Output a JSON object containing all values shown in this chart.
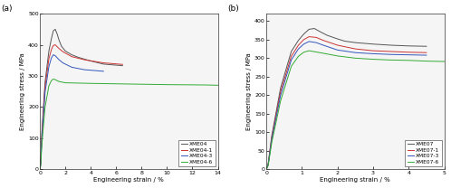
{
  "panel_a": {
    "label": "(a)",
    "xlabel": "Engineering strain / %",
    "ylabel": "Engineering stress / MPa",
    "xlim": [
      0,
      14
    ],
    "ylim": [
      0,
      500
    ],
    "xticks": [
      0,
      2,
      4,
      6,
      8,
      10,
      12,
      14
    ],
    "yticks": [
      0,
      100,
      200,
      300,
      400,
      500
    ],
    "series": [
      {
        "name": "XME04",
        "color": "#555555",
        "x": [
          0,
          0.05,
          0.15,
          0.4,
          0.7,
          0.9,
          1.05,
          1.2,
          1.35,
          1.5,
          1.7,
          2.0,
          2.5,
          3.0,
          4.0,
          5.0,
          6.5
        ],
        "y": [
          0,
          20,
          120,
          280,
          380,
          420,
          445,
          450,
          435,
          415,
          395,
          380,
          368,
          360,
          348,
          338,
          333
        ]
      },
      {
        "name": "XME04-1",
        "color": "#cc3333",
        "x": [
          0,
          0.05,
          0.15,
          0.4,
          0.7,
          0.9,
          1.05,
          1.2,
          1.5,
          1.8,
          2.5,
          3.5,
          5.0,
          6.5
        ],
        "y": [
          0,
          18,
          110,
          265,
          355,
          385,
          398,
          400,
          388,
          378,
          362,
          352,
          342,
          337
        ]
      },
      {
        "name": "XME04-3",
        "color": "#3355bb",
        "x": [
          0,
          0.05,
          0.15,
          0.4,
          0.7,
          0.9,
          1.05,
          1.2,
          1.5,
          1.8,
          2.5,
          3.5,
          5.0
        ],
        "y": [
          0,
          15,
          100,
          248,
          330,
          358,
          368,
          365,
          352,
          342,
          328,
          320,
          315
        ]
      },
      {
        "name": "XME04-6",
        "color": "#33aa33",
        "x": [
          0,
          0.05,
          0.15,
          0.4,
          0.7,
          0.9,
          1.05,
          1.2,
          1.5,
          2.0,
          4.0,
          7.0,
          10.0,
          13.0,
          14.0
        ],
        "y": [
          0,
          10,
          80,
          200,
          268,
          285,
          290,
          288,
          282,
          278,
          276,
          274,
          272,
          271,
          270
        ]
      }
    ]
  },
  "panel_b": {
    "label": "(b)",
    "xlabel": "Engineering strain / %",
    "ylabel": "Engineering stress / MPa",
    "xlim": [
      0,
      5
    ],
    "ylim": [
      0,
      420
    ],
    "xticks": [
      0,
      1,
      2,
      3,
      4,
      5
    ],
    "yticks": [
      0,
      50,
      100,
      150,
      200,
      250,
      300,
      350,
      400
    ],
    "series": [
      {
        "name": "XME07",
        "color": "#555555",
        "x": [
          0,
          0.05,
          0.15,
          0.4,
          0.7,
          0.9,
          1.05,
          1.2,
          1.35,
          1.5,
          1.7,
          2.0,
          2.2,
          2.5,
          3.0,
          3.5,
          4.0,
          4.5
        ],
        "y": [
          0,
          15,
          90,
          220,
          318,
          348,
          365,
          378,
          380,
          372,
          362,
          352,
          346,
          342,
          338,
          335,
          333,
          332
        ]
      },
      {
        "name": "XME07-1",
        "color": "#cc3333",
        "x": [
          0,
          0.05,
          0.15,
          0.4,
          0.7,
          0.9,
          1.05,
          1.2,
          1.4,
          1.6,
          2.0,
          2.5,
          3.0,
          3.5,
          4.0,
          4.5
        ],
        "y": [
          0,
          13,
          85,
          210,
          305,
          335,
          350,
          358,
          356,
          348,
          335,
          325,
          320,
          318,
          316,
          315
        ]
      },
      {
        "name": "XME07-3",
        "color": "#3355bb",
        "x": [
          0,
          0.05,
          0.15,
          0.4,
          0.7,
          0.9,
          1.05,
          1.2,
          1.4,
          1.6,
          2.0,
          2.5,
          3.0,
          3.5,
          4.0,
          4.5
        ],
        "y": [
          0,
          12,
          80,
          200,
          295,
          325,
          338,
          345,
          342,
          335,
          322,
          315,
          312,
          310,
          309,
          308
        ]
      },
      {
        "name": "XME07-6",
        "color": "#33aa33",
        "x": [
          0,
          0.05,
          0.15,
          0.4,
          0.7,
          0.9,
          1.05,
          1.2,
          1.5,
          2.0,
          2.5,
          3.0,
          3.5,
          4.0,
          4.5,
          5.0
        ],
        "y": [
          0,
          10,
          72,
          185,
          278,
          305,
          316,
          320,
          315,
          306,
          300,
          297,
          295,
          294,
          292,
          291
        ]
      }
    ]
  },
  "font_sizes": {
    "axis_label": 5.0,
    "tick_label": 4.5,
    "legend": 4.2,
    "panel_label": 6.5
  },
  "line_width": 0.7,
  "background_color": "#f5f5f5"
}
